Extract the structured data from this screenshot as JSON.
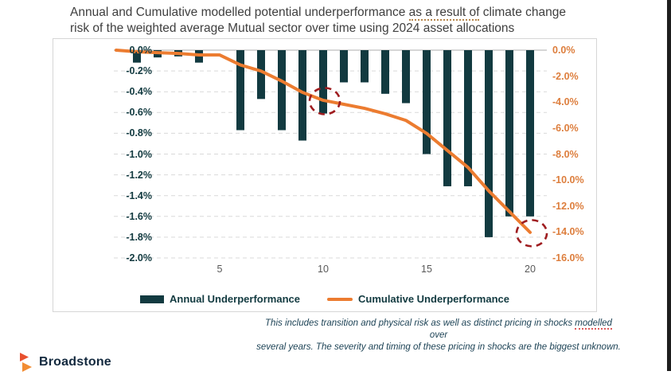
{
  "title": {
    "pre": "Annual and Cumulative modelled potential underperformance ",
    "underlined": "as a result of",
    "post": " climate change",
    "line2": "risk of the weighted average Mutual sector over time using 2024 asset allocations"
  },
  "chart_data": {
    "type": "bar",
    "subtype": "combo-bar-line-dual-axis",
    "x": [
      1,
      2,
      3,
      4,
      5,
      6,
      7,
      8,
      9,
      10,
      11,
      12,
      13,
      14,
      15,
      16,
      17,
      18,
      19,
      20
    ],
    "x_tick_labels": [
      "5",
      "10",
      "15",
      "20"
    ],
    "x_tick_values": [
      5,
      10,
      15,
      20
    ],
    "left_axis": {
      "labels": [
        "0.0%",
        "-0.2%",
        "-0.4%",
        "-0.6%",
        "-0.8%",
        "-1.0%",
        "-1.2%",
        "-1.4%",
        "-1.6%",
        "-1.8%",
        "-2.0%"
      ],
      "min": -2.0,
      "max": 0.0,
      "step": 0.2,
      "color": "#123a40"
    },
    "right_axis": {
      "labels": [
        "0.0%",
        "-2.0%",
        "-4.0%",
        "-6.0%",
        "-8.0%",
        "-10.0%",
        "-12.0%",
        "-14.0%",
        "-16.0%"
      ],
      "min": -16.0,
      "max": 0.0,
      "step": 2.0,
      "color": "#dd7e3d"
    },
    "grid": {
      "dashed": true,
      "color": "#d9d9d9",
      "zero_line_color": "#c8c8c8"
    },
    "series": [
      {
        "name": "Annual Underperformance",
        "type": "bar",
        "axis": "left",
        "color": "#123a40",
        "values": [
          -0.12,
          -0.07,
          -0.06,
          -0.12,
          0.0,
          -0.77,
          -0.47,
          -0.77,
          -0.87,
          -0.61,
          -0.31,
          -0.31,
          -0.42,
          -0.51,
          -1.0,
          -1.31,
          -1.31,
          -1.8,
          -1.6,
          -1.6
        ]
      },
      {
        "name": "Cumulative Underperformance",
        "type": "line",
        "axis": "right",
        "color": "#ec7c30",
        "starts_at_zero": true,
        "values": [
          -0.12,
          -0.19,
          -0.25,
          -0.37,
          -0.37,
          -1.14,
          -1.61,
          -2.38,
          -3.25,
          -3.86,
          -4.17,
          -4.48,
          -4.9,
          -5.41,
          -6.41,
          -7.72,
          -9.03,
          -10.83,
          -12.43,
          -14.03
        ]
      }
    ],
    "annotations": [
      {
        "type": "dashed-circle",
        "x": 10,
        "series": 1,
        "color": "#9f1d20"
      },
      {
        "type": "dashed-circle",
        "x": 20,
        "series": 1,
        "color": "#9f1d20"
      }
    ]
  },
  "legend": {
    "items": [
      {
        "label": "Annual Underperformance",
        "swatch": "bar",
        "color": "#123a40"
      },
      {
        "label": "Cumulative Underperformance",
        "swatch": "line",
        "color": "#ec7c30"
      }
    ]
  },
  "footnote": {
    "line1_pre": "This includes transition and physical risk as well as distinct pricing in shocks ",
    "line1_underlined": "modelled",
    "line1_post": " over",
    "line2": "several years. The severity and timing of these pricing in shocks are the biggest unknown."
  },
  "logo": {
    "text": "Broadstone",
    "triangle_top_color": "#e8502f",
    "triangle_bottom_color": "#f28c33"
  }
}
